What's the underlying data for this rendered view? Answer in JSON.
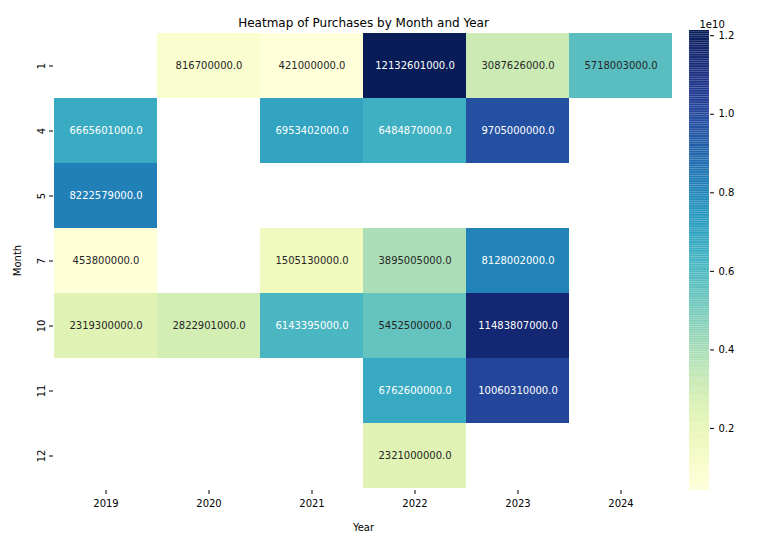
{
  "chart_data": {
    "type": "heatmap",
    "title": "Heatmap of Purchases by Month and Year",
    "x_label": "Year",
    "y_label": "Month",
    "x": [
      "2019",
      "2020",
      "2021",
      "2022",
      "2023",
      "2024"
    ],
    "y": [
      "1",
      "4",
      "5",
      "7",
      "10",
      "11",
      "12"
    ],
    "values": [
      [
        null,
        816700000,
        421000000,
        12132601000,
        3087626000,
        5718003000
      ],
      [
        6665601000,
        null,
        6953402000,
        6484870000,
        9705000000,
        null
      ],
      [
        8222579000,
        null,
        null,
        null,
        null,
        null
      ],
      [
        453800000,
        null,
        1505130000,
        3895005000,
        8128002000,
        null
      ],
      [
        2319300000,
        2822901000,
        6143395000,
        5452500000,
        11483807000,
        null
      ],
      [
        null,
        null,
        null,
        6762600000,
        10060310000,
        null
      ],
      [
        null,
        null,
        null,
        2321000000,
        null,
        null
      ]
    ],
    "value_labels": [
      [
        null,
        "816700000.0",
        "421000000.0",
        "12132601000.0",
        "3087626000.0",
        "5718003000.0"
      ],
      [
        "6665601000.0",
        null,
        "6953402000.0",
        "6484870000.0",
        "9705000000.0",
        null
      ],
      [
        "8222579000.0",
        null,
        null,
        null,
        null,
        null
      ],
      [
        "453800000.0",
        null,
        "1505130000.0",
        "3895005000.0",
        "8128002000.0",
        null
      ],
      [
        "2319300000.0",
        "2822901000.0",
        "6143395000.0",
        "5452500000.0",
        "11483807000.0",
        null
      ],
      [
        null,
        null,
        null,
        "6762600000.0",
        "10060310000.0",
        null
      ],
      [
        null,
        null,
        null,
        "2321000000.0",
        null,
        null
      ]
    ],
    "data_labels": true,
    "colorbar": {
      "range": [
        421000000,
        12132601000
      ],
      "ticks": [
        {
          "value": 2000000000,
          "label": "0.2"
        },
        {
          "value": 4000000000,
          "label": "0.4"
        },
        {
          "value": 6000000000,
          "label": "0.6"
        },
        {
          "value": 8000000000,
          "label": "0.8"
        },
        {
          "value": 10000000000,
          "label": "1.0"
        },
        {
          "value": 12000000000,
          "label": "1.2"
        }
      ],
      "offset_label": "1e10"
    }
  }
}
